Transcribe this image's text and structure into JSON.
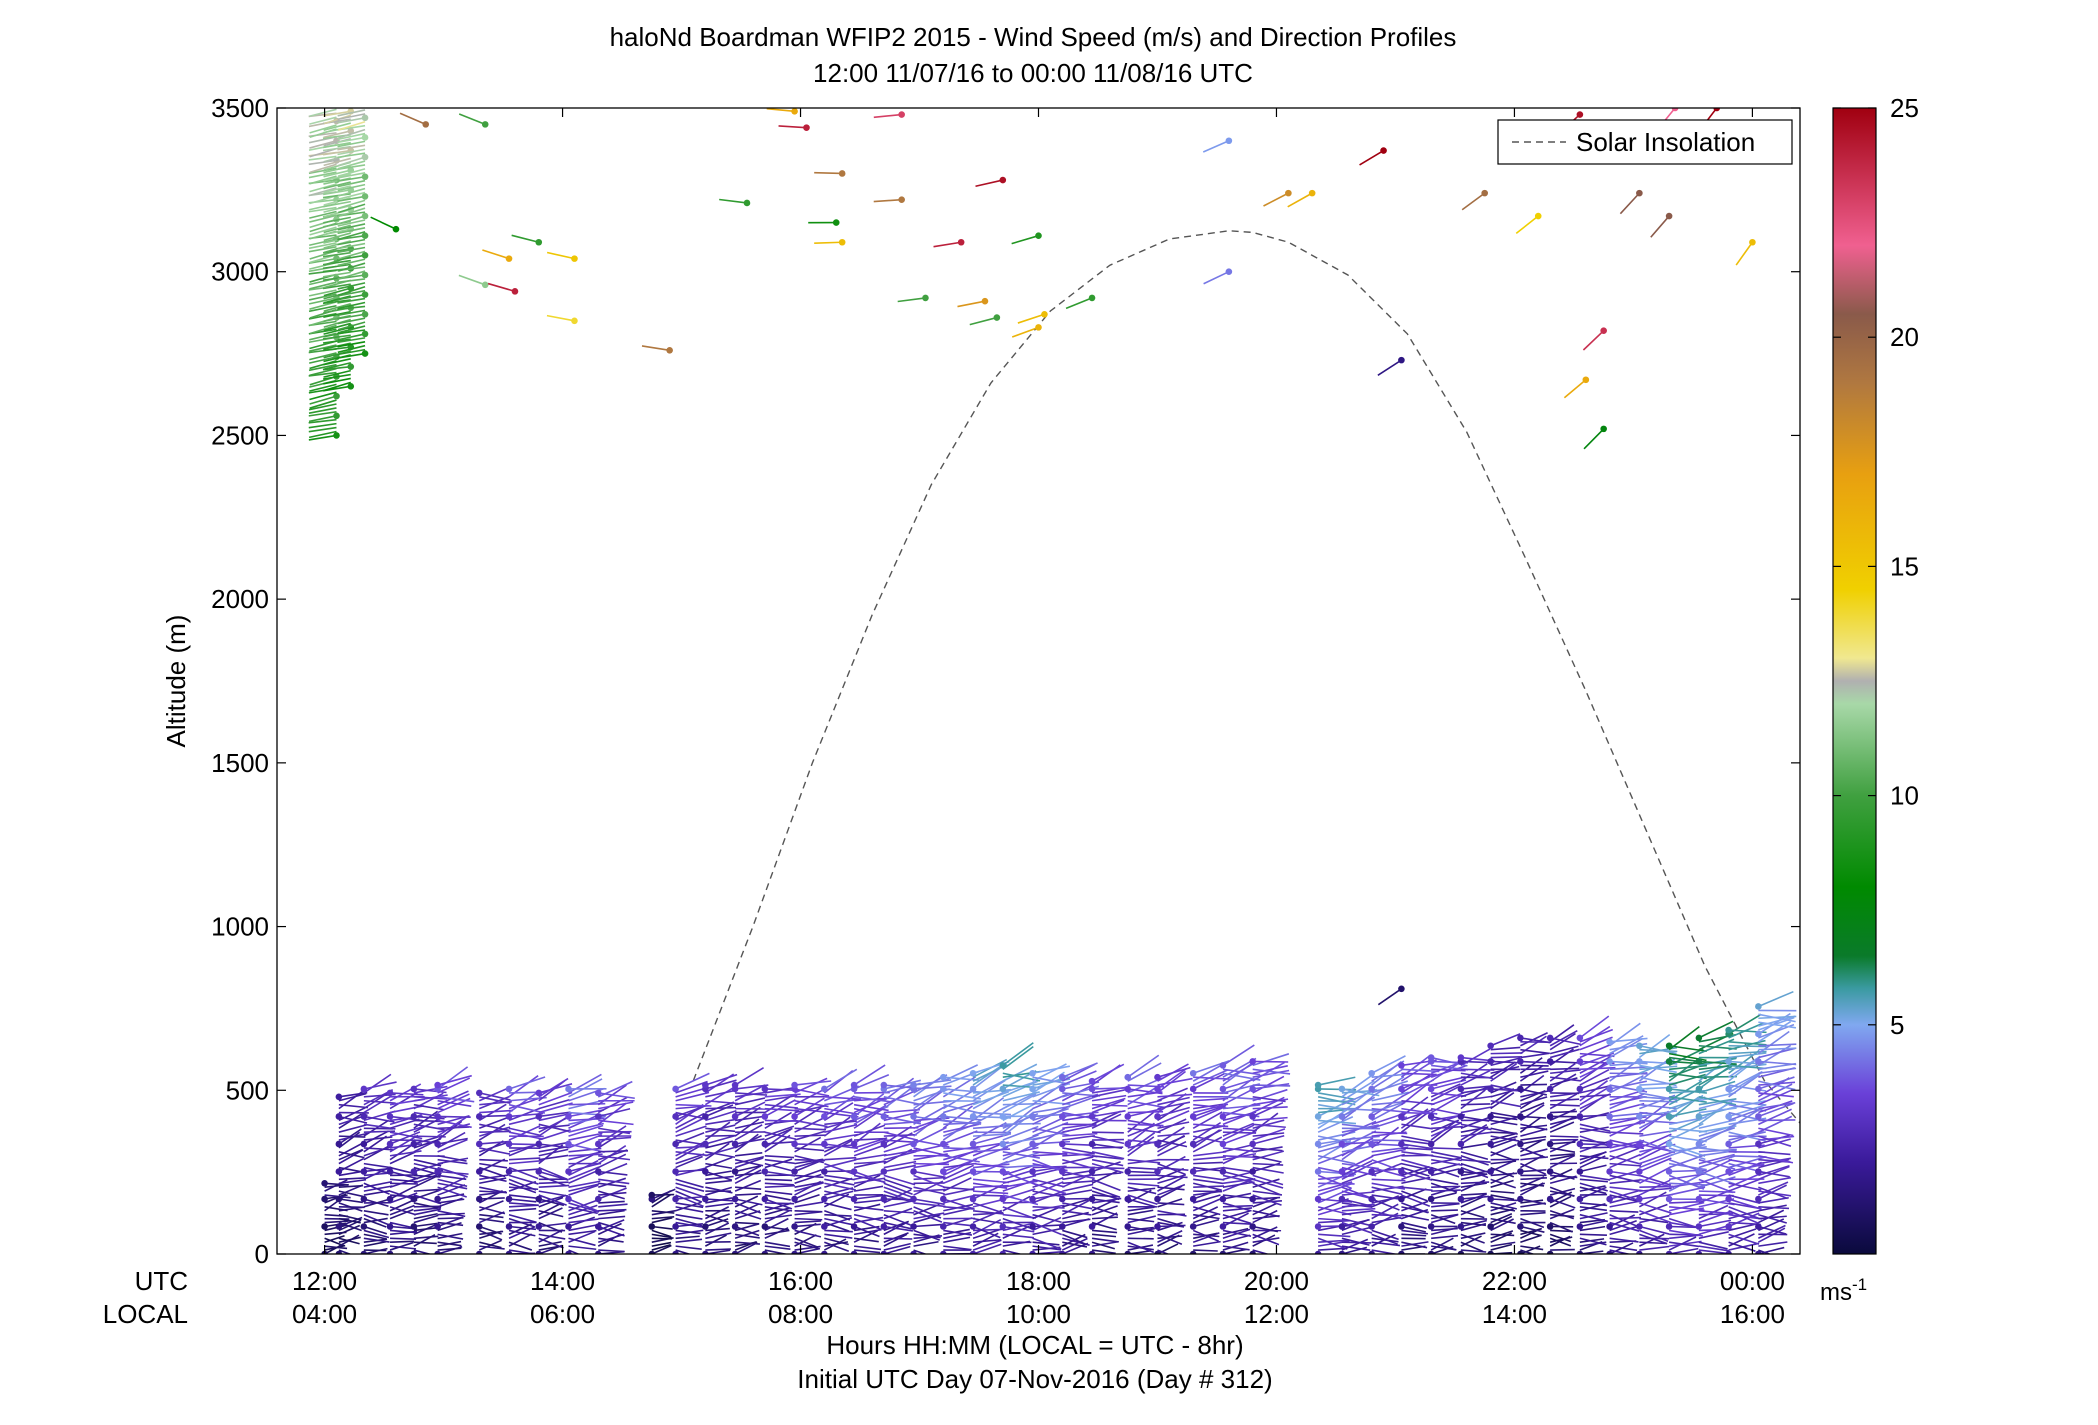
{
  "chart_data": {
    "type": "scatter",
    "subtype": "wind-barb-profile",
    "title": "haloNd Boardman WFIP2 2015 - Wind Speed (m/s) and Direction Profiles",
    "subtitle": "12:00 11/07/16 to 00:00 11/08/16  UTC",
    "ylabel": "Altitude (m)",
    "xlabel": "Hours HH:MM  (LOCAL = UTC - 8hr)",
    "xlabel2": "Initial UTC Day 07-Nov-2016 (Day # 312)",
    "x_row_labels": {
      "utc": "UTC",
      "local": "LOCAL"
    },
    "xlim": [
      11.6,
      24.4
    ],
    "ylim": [
      0,
      3500
    ],
    "y_ticks": [
      0,
      500,
      1000,
      1500,
      2000,
      2500,
      3000,
      3500
    ],
    "x_ticks_utc": [
      {
        "x": 12,
        "label": "12:00"
      },
      {
        "x": 14,
        "label": "14:00"
      },
      {
        "x": 16,
        "label": "16:00"
      },
      {
        "x": 18,
        "label": "18:00"
      },
      {
        "x": 20,
        "label": "20:00"
      },
      {
        "x": 22,
        "label": "22:00"
      },
      {
        "x": 24,
        "label": "00:00"
      }
    ],
    "x_ticks_local": [
      "04:00",
      "06:00",
      "08:00",
      "10:00",
      "12:00",
      "14:00",
      "16:00"
    ],
    "legend": {
      "entry": "Solar Insolation",
      "placement": "top-right",
      "style": "dashed gray"
    },
    "colorbar": {
      "min": 0,
      "max": 25,
      "ticks": [
        5,
        10,
        15,
        20,
        25
      ],
      "unit_label": "ms",
      "unit_exp": "-1",
      "stops": [
        {
          "v": 0,
          "c": "#0a0a3c"
        },
        {
          "v": 2,
          "c": "#3a1a9a"
        },
        {
          "v": 3.5,
          "c": "#6a40d8"
        },
        {
          "v": 5,
          "c": "#80a8f0"
        },
        {
          "v": 5.8,
          "c": "#3a9aa0"
        },
        {
          "v": 6.5,
          "c": "#0a7a2a"
        },
        {
          "v": 8,
          "c": "#008a00"
        },
        {
          "v": 10,
          "c": "#40a040"
        },
        {
          "v": 12,
          "c": "#a8d8a8"
        },
        {
          "v": 12.5,
          "c": "#b0b0b0"
        },
        {
          "v": 13,
          "c": "#f0e890"
        },
        {
          "v": 14.5,
          "c": "#f0d000"
        },
        {
          "v": 17,
          "c": "#e8a010"
        },
        {
          "v": 19,
          "c": "#b07840"
        },
        {
          "v": 20.5,
          "c": "#8a5a4a"
        },
        {
          "v": 22,
          "c": "#f06090"
        },
        {
          "v": 25,
          "c": "#a00010"
        }
      ]
    },
    "solar_insolation_curve": {
      "x": [
        15.1,
        15.6,
        16.1,
        16.6,
        17.1,
        17.6,
        18.1,
        18.6,
        19.1,
        19.6,
        19.8,
        20.1,
        20.6,
        21.1,
        21.6,
        22.1,
        22.6,
        23.1,
        23.6,
        24.1,
        24.4
      ],
      "y": [
        530,
        1000,
        1500,
        1950,
        2350,
        2660,
        2880,
        3020,
        3100,
        3125,
        3120,
        3090,
        2990,
        2810,
        2510,
        2120,
        1720,
        1300,
        880,
        530,
        400
      ]
    },
    "profiles_low": [
      {
        "x": 12.0,
        "top": 220,
        "spd": 1.2
      },
      {
        "x": 12.12,
        "top": 480,
        "spd": 2.0
      },
      {
        "x": 12.33,
        "top": 510,
        "spd": 2.5
      },
      {
        "x": 12.55,
        "top": 500,
        "spd": 2.8
      },
      {
        "x": 12.75,
        "top": 505,
        "spd": 2.5
      },
      {
        "x": 12.95,
        "top": 520,
        "spd": 3.0
      },
      {
        "x": 13.3,
        "top": 500,
        "spd": 2.6
      },
      {
        "x": 13.55,
        "top": 505,
        "spd": 3.2
      },
      {
        "x": 13.8,
        "top": 500,
        "spd": 2.8
      },
      {
        "x": 14.05,
        "top": 505,
        "spd": 3.6
      },
      {
        "x": 14.3,
        "top": 500,
        "spd": 3.0
      },
      {
        "x": 14.75,
        "top": 180,
        "spd": 1.0
      },
      {
        "x": 14.95,
        "top": 510,
        "spd": 3.0
      },
      {
        "x": 15.2,
        "top": 520,
        "spd": 2.6
      },
      {
        "x": 15.45,
        "top": 520,
        "spd": 2.5
      },
      {
        "x": 15.7,
        "top": 510,
        "spd": 2.8
      },
      {
        "x": 15.95,
        "top": 520,
        "spd": 2.9
      },
      {
        "x": 16.2,
        "top": 515,
        "spd": 3.2
      },
      {
        "x": 16.45,
        "top": 520,
        "spd": 3.4
      },
      {
        "x": 16.7,
        "top": 520,
        "spd": 3.5
      },
      {
        "x": 16.95,
        "top": 525,
        "spd": 3.8
      },
      {
        "x": 17.2,
        "top": 540,
        "spd": 4.0
      },
      {
        "x": 17.45,
        "top": 560,
        "spd": 4.5
      },
      {
        "x": 17.7,
        "top": 580,
        "spd": 4.8
      },
      {
        "x": 17.95,
        "top": 560,
        "spd": 4.2
      },
      {
        "x": 18.2,
        "top": 540,
        "spd": 3.5
      },
      {
        "x": 18.45,
        "top": 530,
        "spd": 3.0
      },
      {
        "x": 18.75,
        "top": 540,
        "spd": 3.2
      },
      {
        "x": 19.0,
        "top": 540,
        "spd": 3.0
      },
      {
        "x": 19.3,
        "top": 560,
        "spd": 3.3
      },
      {
        "x": 19.55,
        "top": 580,
        "spd": 3.5
      },
      {
        "x": 19.8,
        "top": 590,
        "spd": 3.2
      },
      {
        "x": 20.35,
        "top": 520,
        "spd": 5.0
      },
      {
        "x": 20.55,
        "top": 510,
        "spd": 4.2
      },
      {
        "x": 20.8,
        "top": 560,
        "spd": 4.0
      },
      {
        "x": 21.05,
        "top": 580,
        "spd": 3.2
      },
      {
        "x": 21.3,
        "top": 600,
        "spd": 3.0
      },
      {
        "x": 21.55,
        "top": 610,
        "spd": 2.5
      },
      {
        "x": 21.8,
        "top": 640,
        "spd": 2.2
      },
      {
        "x": 22.05,
        "top": 660,
        "spd": 2.0
      },
      {
        "x": 22.3,
        "top": 660,
        "spd": 2.2
      },
      {
        "x": 22.55,
        "top": 660,
        "spd": 3.0
      },
      {
        "x": 22.8,
        "top": 650,
        "spd": 4.0
      },
      {
        "x": 23.05,
        "top": 640,
        "spd": 4.5
      },
      {
        "x": 23.3,
        "top": 640,
        "spd": 5.6
      },
      {
        "x": 23.55,
        "top": 660,
        "spd": 5.4
      },
      {
        "x": 23.8,
        "top": 690,
        "spd": 5.0
      },
      {
        "x": 24.05,
        "top": 760,
        "spd": 4.2
      }
    ],
    "profile_high": {
      "x": 12.1,
      "bottom": 2500,
      "top": 3500,
      "spd": 9.0
    },
    "isolated_points": [
      {
        "x": 12.6,
        "y": 3130,
        "spd": 8.0
      },
      {
        "x": 12.85,
        "y": 3450,
        "spd": 19.5
      },
      {
        "x": 13.35,
        "y": 3450,
        "spd": 10.0
      },
      {
        "x": 13.35,
        "y": 2960,
        "spd": 11.5
      },
      {
        "x": 13.55,
        "y": 3040,
        "spd": 16.5
      },
      {
        "x": 13.6,
        "y": 2940,
        "spd": 24.0
      },
      {
        "x": 13.8,
        "y": 3090,
        "spd": 9.5
      },
      {
        "x": 14.1,
        "y": 3040,
        "spd": 15.0
      },
      {
        "x": 14.1,
        "y": 2850,
        "spd": 14.0
      },
      {
        "x": 14.9,
        "y": 2760,
        "spd": 19.0
      },
      {
        "x": 15.55,
        "y": 3210,
        "spd": 9.5
      },
      {
        "x": 15.95,
        "y": 3490,
        "spd": 16.5
      },
      {
        "x": 16.05,
        "y": 3440,
        "spd": 24.0
      },
      {
        "x": 16.35,
        "y": 3300,
        "spd": 19.0
      },
      {
        "x": 16.3,
        "y": 3150,
        "spd": 8.5
      },
      {
        "x": 16.35,
        "y": 3090,
        "spd": 15.5
      },
      {
        "x": 16.85,
        "y": 3220,
        "spd": 19.0
      },
      {
        "x": 16.85,
        "y": 3480,
        "spd": 23.0
      },
      {
        "x": 17.05,
        "y": 2920,
        "spd": 10.0
      },
      {
        "x": 17.35,
        "y": 3090,
        "spd": 24.0
      },
      {
        "x": 17.55,
        "y": 2910,
        "spd": 17.5
      },
      {
        "x": 17.7,
        "y": 3280,
        "spd": 24.5
      },
      {
        "x": 17.65,
        "y": 2860,
        "spd": 10.0
      },
      {
        "x": 18.0,
        "y": 3110,
        "spd": 9.0
      },
      {
        "x": 18.05,
        "y": 2870,
        "spd": 15.5
      },
      {
        "x": 18.0,
        "y": 2830,
        "spd": 16.0
      },
      {
        "x": 18.45,
        "y": 2920,
        "spd": 9.5
      },
      {
        "x": 19.6,
        "y": 3400,
        "spd": 4.8
      },
      {
        "x": 19.6,
        "y": 3000,
        "spd": 4.3
      },
      {
        "x": 20.1,
        "y": 3240,
        "spd": 18.0
      },
      {
        "x": 20.3,
        "y": 3240,
        "spd": 16.0
      },
      {
        "x": 20.9,
        "y": 3370,
        "spd": 25.0
      },
      {
        "x": 21.05,
        "y": 2730,
        "spd": 1.5
      },
      {
        "x": 21.05,
        "y": 810,
        "spd": 1.0
      },
      {
        "x": 21.75,
        "y": 3240,
        "spd": 19.5
      },
      {
        "x": 22.2,
        "y": 3170,
        "spd": 14.5
      },
      {
        "x": 22.6,
        "y": 2670,
        "spd": 16.5
      },
      {
        "x": 22.55,
        "y": 3480,
        "spd": 24.5
      },
      {
        "x": 22.75,
        "y": 2820,
        "spd": 23.5
      },
      {
        "x": 22.75,
        "y": 2520,
        "spd": 7.5
      },
      {
        "x": 23.05,
        "y": 3240,
        "spd": 20.5
      },
      {
        "x": 23.3,
        "y": 3170,
        "spd": 20.5
      },
      {
        "x": 23.35,
        "y": 3500,
        "spd": 22.0
      },
      {
        "x": 23.7,
        "y": 3500,
        "spd": 25.0
      },
      {
        "x": 24.0,
        "y": 3090,
        "spd": 15.5
      }
    ]
  }
}
